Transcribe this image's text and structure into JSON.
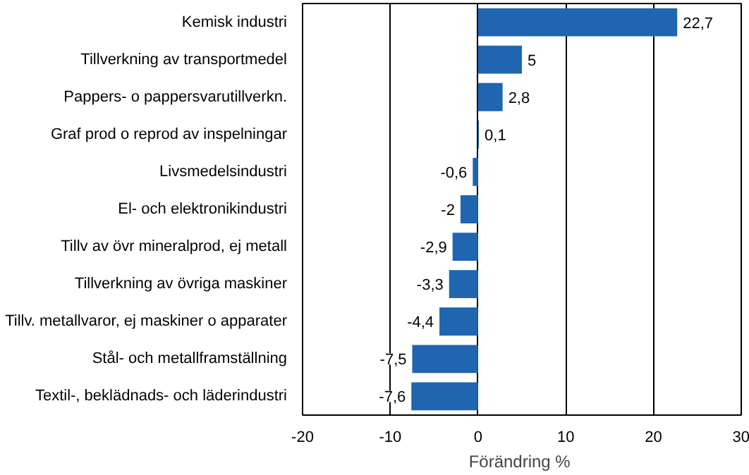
{
  "chart_data": {
    "type": "bar",
    "orientation": "horizontal",
    "xlabel": "Förändring  %",
    "categories": [
      "Kemisk industri",
      "Tillverkning av transportmedel",
      "Pappers- o pappersvarutillverkn.",
      "Graf prod o reprod av inspelningar",
      "Livsmedelsindustri",
      "El- och elektronikindustri",
      "Tillv av övr mineralprod, ej metall",
      "Tillverkning av övriga maskiner",
      "Tillv. metallvaror, ej maskiner o apparater",
      "Stål- och metallframställning",
      "Textil-, beklädnads- och läderindustri"
    ],
    "values": [
      22.7,
      5,
      2.8,
      0.1,
      -0.6,
      -2,
      -2.9,
      -3.3,
      -4.4,
      -7.5,
      -7.6
    ],
    "value_labels": [
      "22,7",
      "5",
      "2,8",
      "0,1",
      "-0,6",
      "-2",
      "-2,9",
      "-3,3",
      "-4,4",
      "-7,5",
      "-7,6"
    ],
    "color": "#1f65b0",
    "xlim": [
      -20,
      30
    ],
    "xticks": [
      -20,
      -10,
      0,
      10,
      20,
      30
    ],
    "grid": "x"
  }
}
